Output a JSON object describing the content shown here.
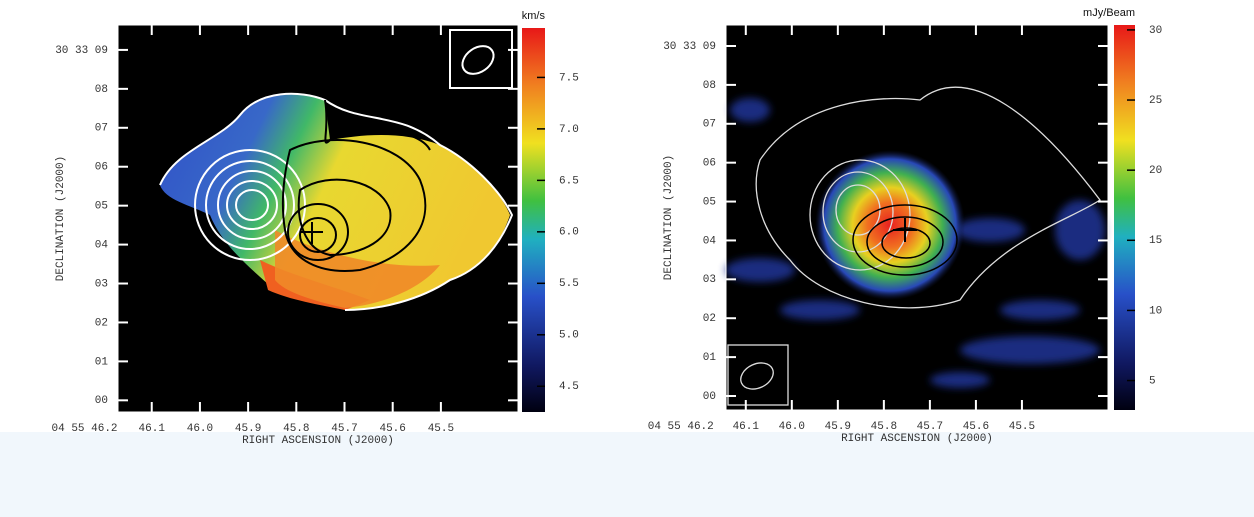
{
  "chart_data": [
    {
      "type": "map",
      "xlabel": "RIGHT ASCENSION (J2000)",
      "ylabel": "DECLINATION (J2000)",
      "xlim": [
        46.17,
        45.34
      ],
      "xticks": [
        {
          "value": 46.2,
          "label": "04 55 46.2"
        },
        46.1,
        {
          "value": 46,
          "label": "46.0"
        },
        45.9,
        45.8,
        45.7,
        45.6,
        45.5
      ],
      "ylim": [
        -0.3,
        9.64
      ],
      "yticks": [
        {
          "value": 9,
          "label": "30 33 09"
        },
        {
          "value": 8,
          "label": "08"
        },
        {
          "value": 7,
          "label": "07"
        },
        {
          "value": 6,
          "label": "06"
        },
        {
          "value": 5,
          "label": "05"
        },
        {
          "value": 4,
          "label": "04"
        },
        {
          "value": 3,
          "label": "03"
        },
        {
          "value": 2,
          "label": "02"
        },
        {
          "value": 1,
          "label": "01"
        },
        {
          "value": 0,
          "label": "00"
        }
      ],
      "colorbar": {
        "label": "km/s",
        "lim": [
          4.25,
          7.98
        ],
        "ticks": [
          7.5,
          {
            "value": 7,
            "label": "7.0"
          },
          6.5,
          {
            "value": 6,
            "label": "6.0"
          },
          5.5,
          {
            "value": 5,
            "label": "5.0"
          },
          4.5
        ]
      }
    },
    {
      "type": "map",
      "xlabel": "RIGHT ASCENSION (J2000)",
      "ylabel": "DECLINATION (J2000)",
      "xlim": [
        46.143,
        45.313
      ],
      "xticks": [
        {
          "value": 46.2,
          "label": "04 55 46.2"
        },
        46.1,
        {
          "value": 46,
          "label": "46.0"
        },
        45.9,
        45.8,
        45.7,
        45.6,
        45.5
      ],
      "ylim": [
        -0.36,
        9.54
      ],
      "yticks": [
        {
          "value": 9,
          "label": "30 33 09"
        },
        {
          "value": 8,
          "label": "08"
        },
        {
          "value": 7,
          "label": "07"
        },
        {
          "value": 6,
          "label": "06"
        },
        {
          "value": 5,
          "label": "05"
        },
        {
          "value": 4,
          "label": "04"
        },
        {
          "value": 3,
          "label": "03"
        },
        {
          "value": 2,
          "label": "02"
        },
        {
          "value": 1,
          "label": "01"
        },
        {
          "value": 0,
          "label": "00"
        }
      ],
      "colorbar": {
        "label": "mJy/Beam",
        "lim": [
          2.9,
          30.35
        ],
        "ticks": [
          30,
          25,
          20,
          15,
          10,
          5
        ]
      }
    }
  ]
}
